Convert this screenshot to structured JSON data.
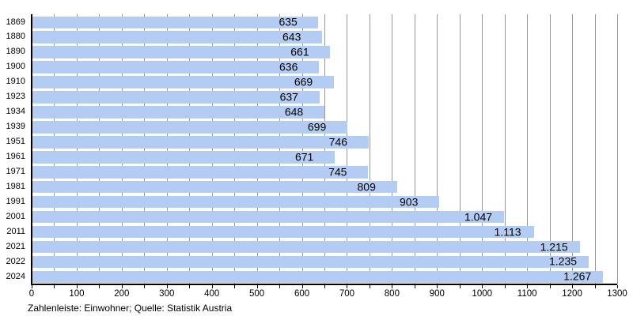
{
  "chart_data": {
    "type": "bar",
    "orientation": "horizontal",
    "title": "",
    "xlabel": "",
    "ylabel": "",
    "xlim": [
      0,
      1300
    ],
    "grid": "on",
    "legend": "none",
    "x_minor_tick_step": 50,
    "x_major_ticks": [
      0,
      100,
      200,
      300,
      400,
      500,
      600,
      700,
      800,
      900,
      1000,
      1100,
      1200,
      1300
    ],
    "x_tick_labels": [
      "0",
      "100",
      "200",
      "300",
      "400",
      "500",
      "600",
      "700",
      "800",
      "900",
      "1000",
      "1100",
      "1200",
      "1300"
    ],
    "categories": [
      "1869",
      "1880",
      "1890",
      "1900",
      "1910",
      "1923",
      "1934",
      "1939",
      "1951",
      "1961",
      "1971",
      "1981",
      "1991",
      "2001",
      "2011",
      "2021",
      "2022",
      "2024"
    ],
    "values": [
      635,
      643,
      661,
      636,
      669,
      637,
      648,
      699,
      746,
      671,
      745,
      809,
      903,
      1047,
      1113,
      1215,
      1235,
      1267
    ],
    "value_labels": [
      "635",
      "643",
      "661",
      "636",
      "669",
      "637",
      "648",
      "699",
      "746",
      "671",
      "745",
      "809",
      "903",
      "1.047",
      "1.113",
      "1.215",
      "1.235",
      "1.267"
    ],
    "footer": "Zahlenleiste: Einwohner; Quelle: Statistik Austria",
    "colors": {
      "bar": "#b3ccf4",
      "grid": "#999999",
      "axis": "#000000",
      "text": "#000000"
    }
  }
}
